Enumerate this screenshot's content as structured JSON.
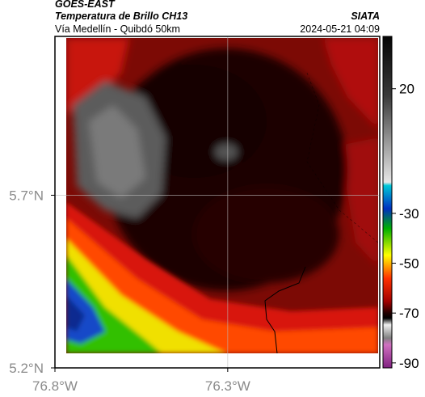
{
  "header": {
    "satellite": "GOES-EAST",
    "product": "Temperatura de Brillo CH13",
    "source": "SIATA",
    "region": "Vía Medellín - Quibdó 50km",
    "timestamp": "2024-05-21 04:09"
  },
  "map": {
    "xlim": [
      -76.8,
      -75.86
    ],
    "ylim": [
      5.2,
      6.16
    ],
    "xticks": [
      {
        "value": -76.8,
        "label": "76.8°W"
      },
      {
        "value": -76.3,
        "label": "76.3°W"
      }
    ],
    "yticks": [
      {
        "value": 5.2,
        "label": "5.2°N"
      },
      {
        "value": 5.7,
        "label": "5.7°N"
      }
    ],
    "grid": true
  },
  "colorbar": {
    "lim": [
      -92,
      41
    ],
    "ticks": [
      20,
      -30,
      -50,
      -70,
      -90
    ]
  }
}
